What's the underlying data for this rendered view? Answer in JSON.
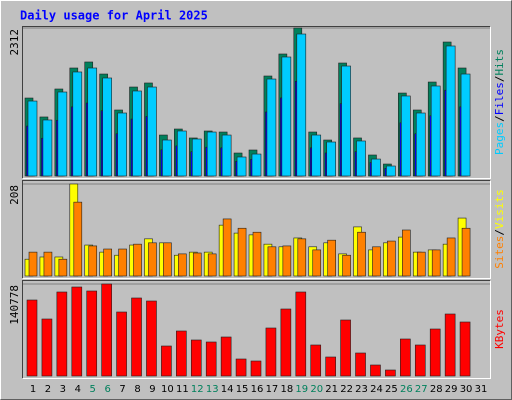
{
  "chart_data": {
    "type": "bar",
    "title": "Daily usage for April 2025",
    "categories": [
      "1",
      "2",
      "3",
      "4",
      "5",
      "6",
      "7",
      "8",
      "9",
      "10",
      "11",
      "12",
      "13",
      "14",
      "15",
      "16",
      "17",
      "18",
      "19",
      "20",
      "21",
      "22",
      "23",
      "24",
      "25",
      "26",
      "27",
      "28",
      "29",
      "30",
      "31"
    ],
    "category_colors": [
      "#000000",
      "#000000",
      "#000000",
      "#000000",
      "#00805c",
      "#00805c",
      "#000000",
      "#000000",
      "#000000",
      "#000000",
      "#000000",
      "#00805c",
      "#00805c",
      "#000000",
      "#000000",
      "#000000",
      "#000000",
      "#000000",
      "#00805c",
      "#00805c",
      "#000000",
      "#000000",
      "#000000",
      "#000000",
      "#000000",
      "#00805c",
      "#00805c",
      "#000000",
      "#000000",
      "#000000",
      "#000000"
    ],
    "legend_separator": "/",
    "panels": [
      {
        "ylim": [
          0,
          2312
        ],
        "yticks": [
          2312
        ],
        "series": [
          {
            "name": "Hits",
            "color": "#00805c",
            "values": [
              1218,
              922,
              1359,
              1687,
              1781,
              1593,
              1031,
              1390,
              1453,
              640,
              734,
              594,
              703,
              687,
              359,
              406,
              1562,
              1906,
              2312,
              687,
              562,
              1765,
              594,
              328,
              187,
              1296,
              1031,
              1468,
              2093,
              1687,
              null
            ]
          },
          {
            "name": "Files",
            "color": "#0000ff",
            "values": [
              780,
              590,
              870,
              1080,
              1140,
              1020,
              660,
              890,
              930,
              410,
              470,
              380,
              450,
              440,
              230,
              260,
              1000,
              1220,
              1480,
              440,
              360,
              1130,
              380,
              210,
              120,
              830,
              660,
              940,
              1340,
              1080,
              null
            ]
          },
          {
            "name": "Pages",
            "color": "#00ccff",
            "values": [
              1171,
              875,
              1312,
              1625,
              1687,
              1531,
              984,
              1328,
              1390,
              562,
              703,
              578,
              687,
              640,
              297,
              343,
              1515,
              1859,
              2218,
              640,
              531,
              1718,
              547,
              265,
              156,
              1250,
              984,
              1406,
              2031,
              1593,
              null
            ]
          }
        ]
      },
      {
        "ylim": [
          0,
          208
        ],
        "yticks": [
          208
        ],
        "series": [
          {
            "name": "Visits",
            "color": "#ffff00",
            "values": [
              38,
              43,
              43,
              208,
              70,
              54,
              47,
              70,
              84,
              75,
              47,
              54,
              54,
              115,
              97,
              93,
              72,
              66,
              86,
              66,
              75,
              50,
              111,
              59,
              75,
              88,
              54,
              59,
              72,
              131,
              null
            ]
          },
          {
            "name": "Sites",
            "color": "#ff8000",
            "values": [
              54,
              54,
              38,
              167,
              68,
              61,
              61,
              72,
              75,
              75,
              50,
              52,
              50,
              129,
              108,
              99,
              66,
              68,
              84,
              59,
              81,
              47,
              99,
              66,
              79,
              104,
              54,
              59,
              86,
              108,
              null
            ]
          }
        ]
      },
      {
        "ylim": [
          0,
          140778
        ],
        "yticks": [
          140778
        ],
        "series": [
          {
            "name": "KBytes",
            "color": "#ff0000",
            "values": [
              116290,
              87220,
              128540,
              136190,
              130070,
              140778,
              97930,
              119360,
              114760,
              45900,
              68860,
              55090,
              52030,
              59680,
              26010,
              22950,
              73450,
              102520,
              128540,
              47440,
              29070,
              85690,
              35190,
              16830,
              9180,
              56620,
              47440,
              71920,
              94870,
              82630,
              null
            ]
          }
        ]
      }
    ]
  }
}
